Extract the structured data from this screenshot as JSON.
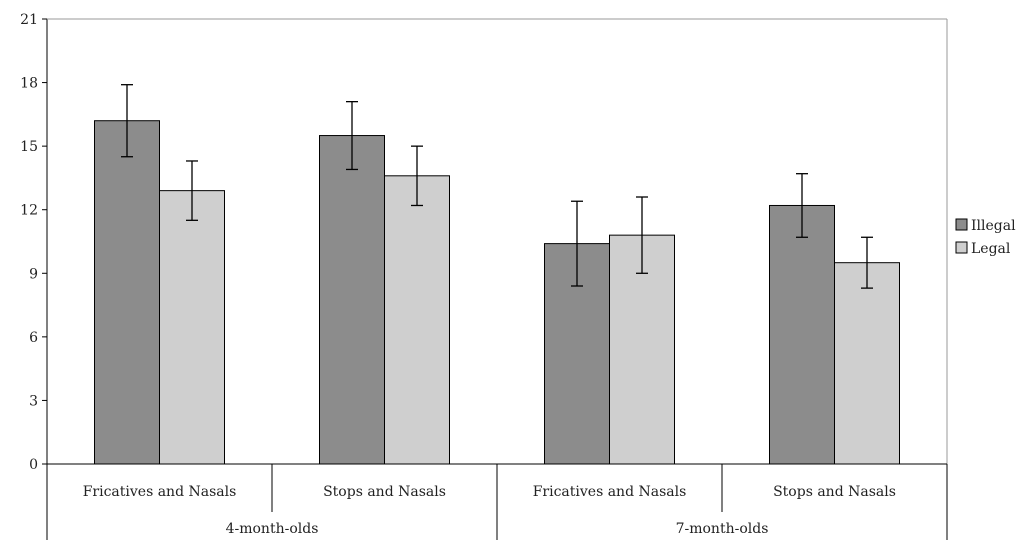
{
  "chart_data": {
    "type": "bar",
    "title": "",
    "xlabel": "",
    "ylabel": "",
    "ylim": [
      0,
      21
    ],
    "yticks": [
      0,
      3,
      6,
      9,
      12,
      15,
      18,
      21
    ],
    "grid": false,
    "legend_position": "right",
    "groups": [
      {
        "label": "4-month-olds",
        "categories": [
          "Fricatives and Nasals",
          "Stops and Nasals"
        ]
      },
      {
        "label": "7-month-olds",
        "categories": [
          "Fricatives and Nasals",
          "Stops and Nasals"
        ]
      }
    ],
    "series": [
      {
        "name": "Illegal",
        "color": "#8c8c8c",
        "values": [
          16.2,
          15.5,
          10.4,
          12.2
        ],
        "errors": [
          1.7,
          1.6,
          2.0,
          1.5
        ]
      },
      {
        "name": "Legal",
        "color": "#cfcfcf",
        "values": [
          12.9,
          13.6,
          10.8,
          9.5
        ],
        "errors": [
          1.4,
          1.4,
          1.8,
          1.2
        ]
      }
    ]
  }
}
